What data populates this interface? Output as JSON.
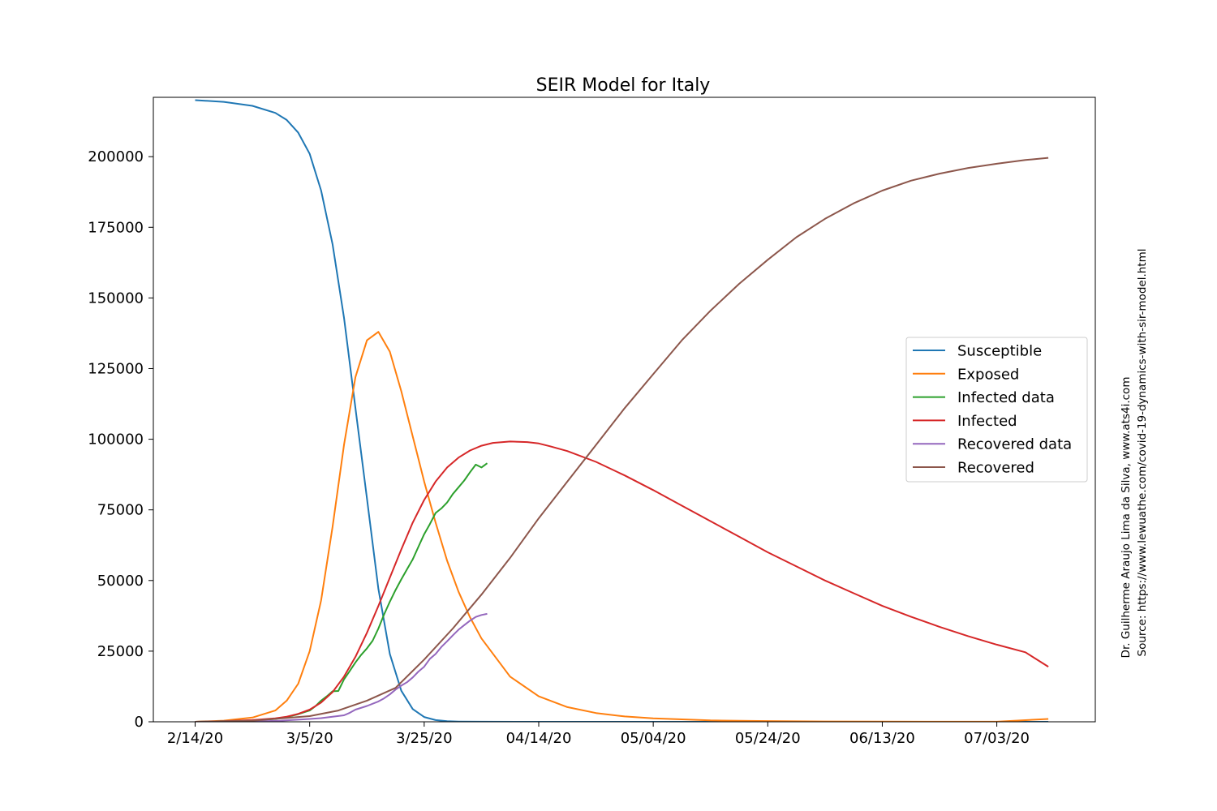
{
  "chart_data": {
    "type": "line",
    "title": "SEIR Model for Italy",
    "xlabel": "",
    "ylabel": "",
    "x_ticks": [
      "2/14/20",
      "3/5/20",
      "3/25/20",
      "04/14/20",
      "05/04/20",
      "05/24/20",
      "06/13/20",
      "07/03/20"
    ],
    "x_tick_days": [
      0,
      20,
      40,
      60,
      80,
      100,
      120,
      140
    ],
    "xlim_days": [
      -7.3,
      157.2
    ],
    "y_ticks": [
      0,
      25000,
      50000,
      75000,
      100000,
      125000,
      150000,
      175000,
      200000
    ],
    "ylim": [
      0,
      221000
    ],
    "grid": false,
    "legend_position": "center-right",
    "series": [
      {
        "name": "Susceptible",
        "color": "#1f77b4",
        "x_days": [
          0,
          5,
          10,
          14,
          16,
          18,
          20,
          22,
          24,
          26,
          28,
          30,
          32,
          34,
          36,
          38,
          40,
          42,
          44,
          46,
          50,
          60,
          80,
          100,
          120,
          149
        ],
        "values": [
          220000,
          219400,
          218000,
          215500,
          213000,
          208500,
          201000,
          188000,
          169000,
          143000,
          111000,
          79000,
          47000,
          24000,
          11000,
          4500,
          1700,
          600,
          200,
          80,
          20,
          0,
          0,
          0,
          0,
          0
        ]
      },
      {
        "name": "Exposed",
        "color": "#ff7f0e",
        "x_days": [
          0,
          5,
          10,
          14,
          16,
          18,
          20,
          22,
          24,
          26,
          28,
          30,
          32,
          34,
          36,
          38,
          39,
          40,
          42,
          44,
          46,
          48,
          50,
          55,
          60,
          65,
          70,
          75,
          80,
          90,
          100,
          110,
          120,
          130,
          140,
          149
        ],
        "values": [
          0,
          400,
          1500,
          4000,
          7500,
          13500,
          25000,
          43000,
          69000,
          98000,
          122000,
          135000,
          138000,
          131000,
          117000,
          101000,
          93000,
          85000,
          70500,
          57000,
          46000,
          37000,
          29500,
          16000,
          9000,
          5200,
          3100,
          1900,
          1200,
          500,
          250,
          120,
          60,
          30,
          15,
          1000
        ]
      },
      {
        "name": "Infected data",
        "color": "#2ca02c",
        "x_days": [
          0,
          5,
          10,
          14,
          16,
          18,
          20,
          21,
          22,
          23,
          24,
          25,
          26,
          27,
          28,
          29,
          30,
          31,
          32,
          33,
          34,
          35,
          36,
          37,
          38,
          39,
          40,
          41,
          42,
          43,
          44,
          45,
          46,
          47,
          48,
          49,
          50,
          51
        ],
        "values": [
          0,
          200,
          500,
          1000,
          1700,
          2700,
          4000,
          5500,
          7500,
          9000,
          10800,
          10900,
          15000,
          18000,
          21000,
          23700,
          26000,
          28700,
          33000,
          38000,
          42500,
          46600,
          50400,
          54000,
          57500,
          62000,
          66400,
          70000,
          73900,
          75500,
          77600,
          80600,
          83000,
          85400,
          88300,
          91000,
          90000,
          91500
        ]
      },
      {
        "name": "Infected",
        "color": "#d62728",
        "x_days": [
          0,
          5,
          10,
          14,
          16,
          18,
          20,
          22,
          24,
          26,
          28,
          30,
          32,
          34,
          36,
          38,
          40,
          42,
          44,
          46,
          48,
          50,
          52,
          55,
          58,
          60,
          62,
          65,
          70,
          75,
          80,
          85,
          90,
          95,
          100,
          105,
          110,
          115,
          120,
          125,
          130,
          135,
          140,
          145,
          149
        ],
        "values": [
          0,
          200,
          600,
          1200,
          1800,
          2800,
          4300,
          6800,
          10500,
          16000,
          23000,
          31500,
          41000,
          51000,
          61000,
          70500,
          78500,
          85000,
          90000,
          93500,
          96000,
          97700,
          98700,
          99200,
          99000,
          98500,
          97500,
          95800,
          92000,
          87200,
          82000,
          76500,
          71000,
          65500,
          60000,
          55000,
          50000,
          45500,
          41000,
          37200,
          33600,
          30300,
          27300,
          24600,
          19500
        ]
      },
      {
        "name": "Recovered data",
        "color": "#9467bd",
        "x_days": [
          0,
          10,
          15,
          20,
          22,
          24,
          26,
          27,
          28,
          30,
          32,
          33,
          34,
          35,
          36,
          37,
          38,
          39,
          40,
          41,
          42,
          43,
          44,
          45,
          46,
          47,
          48,
          49,
          50,
          51
        ],
        "values": [
          0,
          100,
          400,
          1000,
          1300,
          1800,
          2300,
          3200,
          4300,
          5600,
          7200,
          8300,
          9700,
          11400,
          12800,
          14000,
          15700,
          17800,
          19500,
          22300,
          24000,
          26500,
          28500,
          30600,
          32600,
          34200,
          35800,
          37100,
          37800,
          38200
        ]
      },
      {
        "name": "Recovered",
        "color": "#8c564b",
        "x_days": [
          0,
          10,
          20,
          25,
          30,
          35,
          40,
          45,
          50,
          55,
          60,
          65,
          70,
          75,
          80,
          85,
          90,
          95,
          100,
          105,
          110,
          115,
          120,
          125,
          130,
          135,
          140,
          145,
          149
        ],
        "values": [
          0,
          400,
          2000,
          4000,
          7500,
          12000,
          22000,
          33000,
          45000,
          58000,
          72000,
          85000,
          98000,
          111000,
          123000,
          135000,
          145500,
          155000,
          163500,
          171500,
          178000,
          183500,
          188000,
          191500,
          194000,
          196000,
          197500,
          198800,
          199600
        ]
      }
    ]
  },
  "credits": {
    "author_line": "Dr. Guilherme Araujo Lima da Silva, www.ats4i.com",
    "source_line": "Source: https://www.lewuathe.com/covid-19-dynamics-with-sir-model.html"
  }
}
